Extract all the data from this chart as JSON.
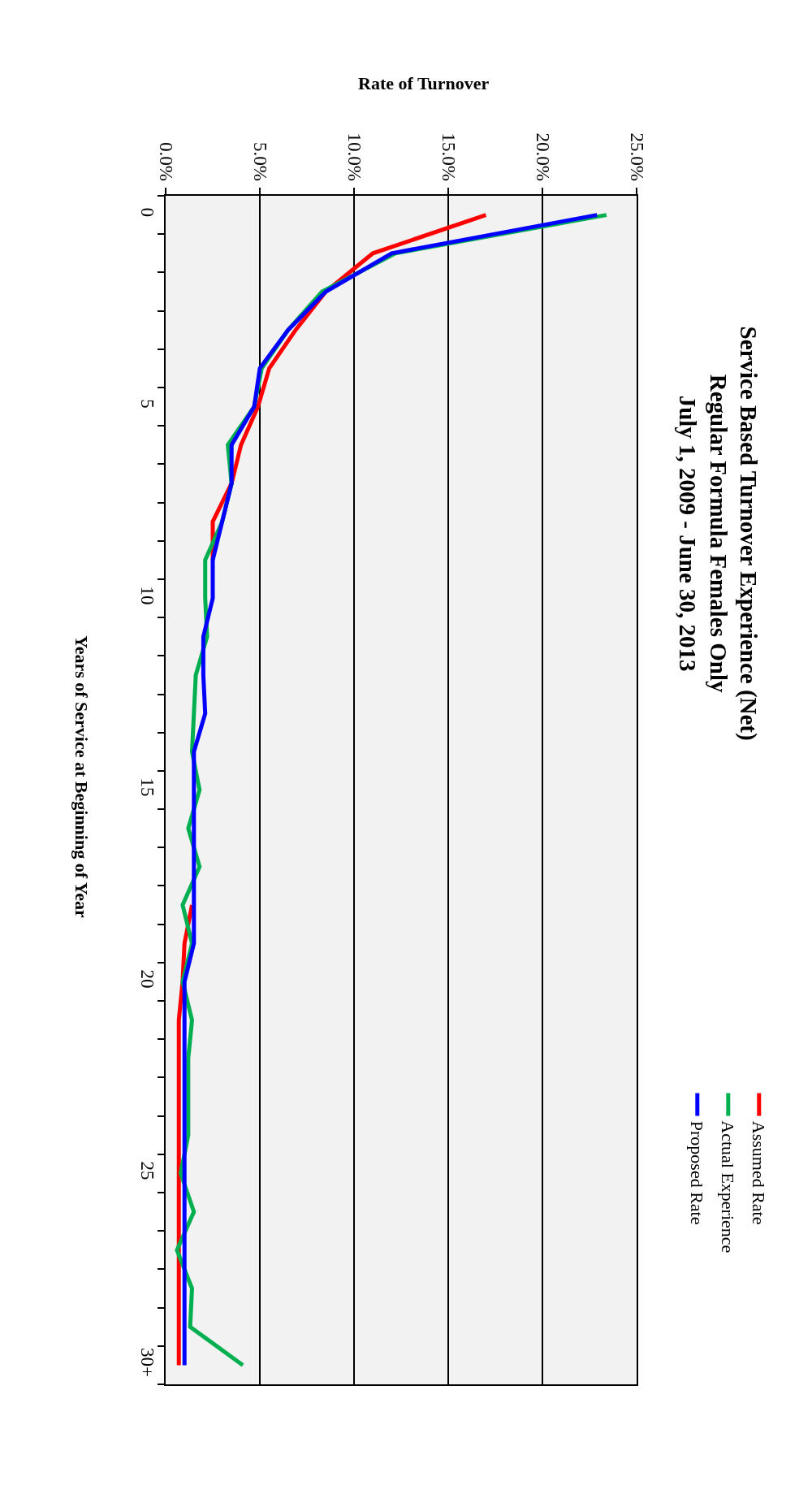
{
  "chart_data": {
    "type": "line",
    "title": "Service Based Turnover Experience (Net)\nRegular Formula Females Only\nJuly 1, 2009 - June 30, 2013",
    "orientation": "horizontal",
    "ylabel": "Years of Service at Beginning of Year",
    "xlabel": "Rate of Turnover",
    "categories": [
      "0",
      null,
      null,
      null,
      null,
      "5",
      null,
      null,
      null,
      null,
      "10",
      null,
      null,
      null,
      null,
      "15",
      null,
      null,
      null,
      null,
      "20",
      null,
      null,
      null,
      null,
      "25",
      null,
      null,
      null,
      null,
      "30+"
    ],
    "series": [
      {
        "name": "Assumed Rate",
        "color": "#ff0000",
        "values": [
          17.0,
          11.0,
          8.5,
          6.9,
          5.5,
          4.9,
          4.0,
          3.5,
          2.5,
          2.5,
          null,
          null,
          null,
          null,
          null,
          null,
          null,
          null,
          1.4,
          1.0,
          0.9,
          0.7,
          0.7,
          0.7,
          0.7,
          0.7,
          0.7,
          0.7,
          0.7,
          0.7,
          0.7
        ]
      },
      {
        "name": "Actual Experience",
        "color": "#00b050",
        "values": [
          23.4,
          12.2,
          8.3,
          6.5,
          5.1,
          4.7,
          3.3,
          3.5,
          3.0,
          2.1,
          2.1,
          2.2,
          1.6,
          1.5,
          1.4,
          1.8,
          1.2,
          1.8,
          0.9,
          1.4,
          0.9,
          1.4,
          1.2,
          1.2,
          1.2,
          0.8,
          1.5,
          0.6,
          1.4,
          1.3,
          4.1
        ]
      },
      {
        "name": "Proposed Rate",
        "color": "#0000ff",
        "values": [
          22.9,
          12.0,
          8.5,
          6.5,
          5.0,
          4.7,
          3.5,
          3.5,
          3.0,
          2.5,
          2.5,
          2.0,
          2.0,
          2.1,
          1.5,
          1.5,
          1.5,
          1.5,
          1.5,
          1.5,
          1.0,
          1.0,
          1.0,
          1.0,
          1.0,
          1.0,
          1.0,
          1.0,
          1.0,
          1.0,
          1.0
        ]
      }
    ],
    "xlim": [
      0,
      25
    ],
    "xticks": [
      {
        "value": 0,
        "label": "0.0%"
      },
      {
        "value": 5,
        "label": "5.0%"
      },
      {
        "value": 10,
        "label": "10.0%"
      },
      {
        "value": 15,
        "label": "15.0%"
      },
      {
        "value": 20,
        "label": "20.0%"
      },
      {
        "value": 25,
        "label": "25.0%"
      }
    ],
    "grid": "x",
    "legend": "bottom right",
    "marker": "none",
    "line_style": "solid"
  }
}
